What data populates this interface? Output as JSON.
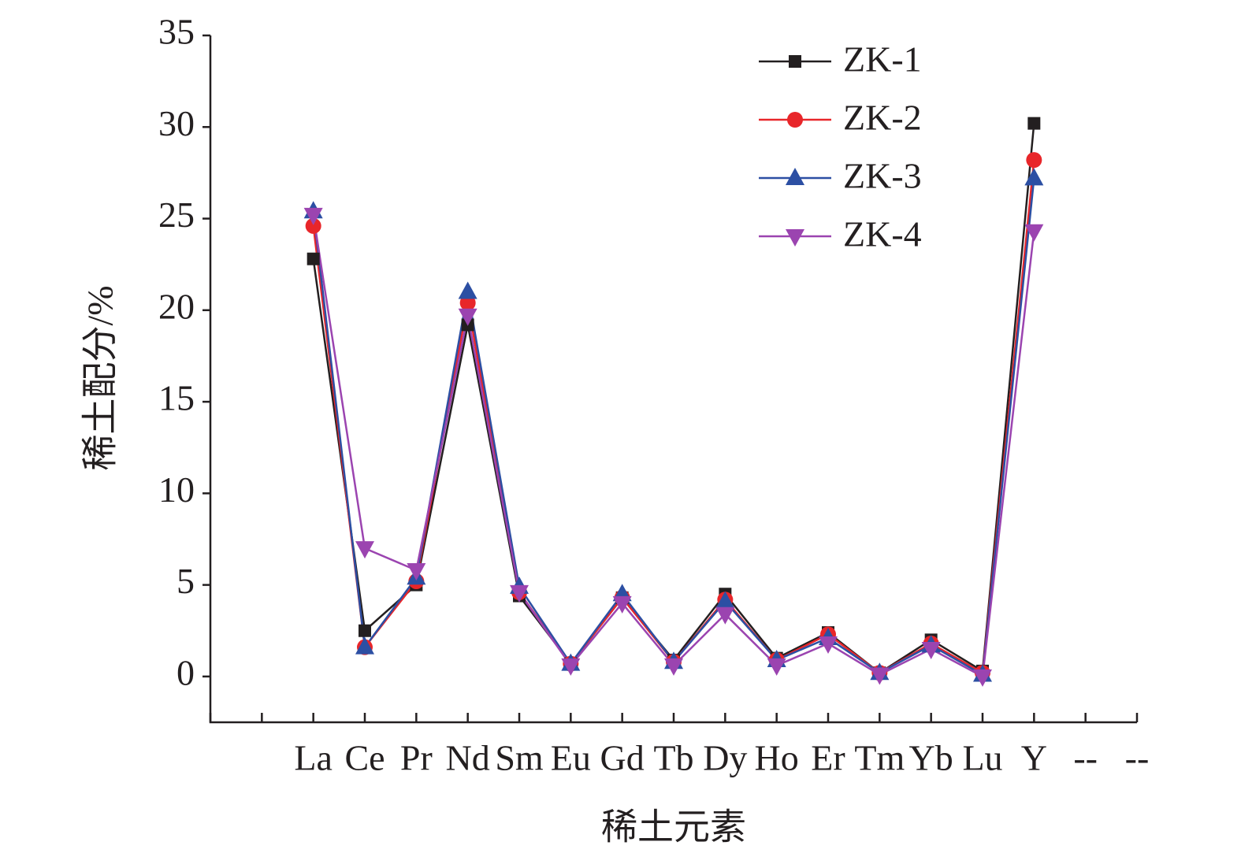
{
  "chart_data": {
    "type": "line",
    "x_label": "稀土元素",
    "y_label": "稀土配分/%",
    "categories": [
      null,
      null,
      "La",
      "Ce",
      "Pr",
      "Nd",
      "Sm",
      "Eu",
      "Gd",
      "Tb",
      "Dy",
      "Ho",
      "Er",
      "Tm",
      "Yb",
      "Lu",
      "Y",
      "--",
      "--"
    ],
    "series": [
      {
        "name": "ZK-1",
        "color": "#231f20",
        "marker": "square",
        "values": [
          null,
          null,
          22.8,
          2.5,
          5.0,
          19.2,
          4.4,
          0.7,
          4.3,
          0.9,
          4.5,
          1.0,
          2.4,
          0.2,
          2.0,
          0.3,
          30.2,
          null,
          null
        ]
      },
      {
        "name": "ZK-2",
        "color": "#e8262a",
        "marker": "circle",
        "values": [
          null,
          null,
          24.6,
          1.6,
          5.2,
          20.4,
          4.6,
          0.7,
          4.3,
          0.8,
          4.2,
          0.9,
          2.3,
          0.2,
          1.8,
          0.2,
          28.2,
          null,
          null
        ]
      },
      {
        "name": "ZK-3",
        "color": "#2c4fa3",
        "marker": "triangle-up",
        "values": [
          null,
          null,
          25.4,
          1.6,
          5.4,
          21.0,
          4.9,
          0.7,
          4.5,
          0.8,
          4.1,
          0.9,
          2.1,
          0.2,
          1.7,
          0.1,
          27.2,
          null,
          null
        ]
      },
      {
        "name": "ZK-4",
        "color": "#9b44b0",
        "marker": "triangle-down",
        "values": [
          null,
          null,
          25.2,
          7.0,
          5.8,
          19.7,
          4.6,
          0.6,
          4.0,
          0.6,
          3.4,
          0.6,
          1.8,
          0.1,
          1.5,
          0.0,
          24.3,
          null,
          null
        ]
      }
    ],
    "ylim": [
      -2.5,
      35
    ],
    "yticks": [
      0,
      5,
      10,
      15,
      20,
      25,
      30,
      35
    ],
    "legend": "top-right",
    "grid": false
  }
}
